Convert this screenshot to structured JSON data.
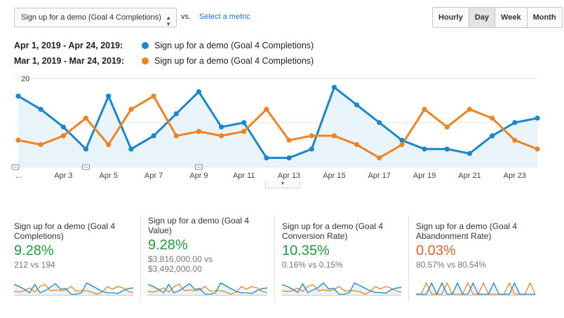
{
  "metric_selector": {
    "value": "Sign up for a demo (Goal 4 Completions)",
    "icon": "dropdown-arrow-icon"
  },
  "vs_label": "vs.",
  "select_metric_label": "Select a metric",
  "granularity": {
    "options": [
      "Hourly",
      "Day",
      "Week",
      "Month"
    ],
    "selected": "Day"
  },
  "legend": [
    {
      "range": "Apr 1, 2019 - Apr 24, 2019:",
      "label": "Sign up for a demo (Goal 4 Completions)",
      "color": "#1a87cc"
    },
    {
      "range": "Mar 1, 2019 - Mar 24, 2019:",
      "label": "Sign up for a demo (Goal 4 Completions)",
      "color": "#f08321"
    }
  ],
  "chart_data": {
    "type": "area",
    "ylim": [
      0,
      20
    ],
    "yticks": [
      "20",
      "10"
    ],
    "x_points": [
      "Apr 1",
      "Apr 2",
      "Apr 3",
      "Apr 4",
      "Apr 5",
      "Apr 6",
      "Apr 7",
      "Apr 8",
      "Apr 9",
      "Apr 10",
      "Apr 11",
      "Apr 12",
      "Apr 13",
      "Apr 14",
      "Apr 15",
      "Apr 16",
      "Apr 17",
      "Apr 18",
      "Apr 19",
      "Apr 20",
      "Apr 21",
      "Apr 22",
      "Apr 23",
      "Apr 24"
    ],
    "xtick_labels": [
      {
        "label": "...",
        "index": 0
      },
      {
        "label": "Apr 3",
        "index": 2
      },
      {
        "label": "Apr 5",
        "index": 4
      },
      {
        "label": "Apr 7",
        "index": 6
      },
      {
        "label": "Apr 9",
        "index": 8
      },
      {
        "label": "Apr 11",
        "index": 10
      },
      {
        "label": "Apr 13",
        "index": 12
      },
      {
        "label": "Apr 15",
        "index": 14
      },
      {
        "label": "Apr 17",
        "index": 16
      },
      {
        "label": "Apr 19",
        "index": 18
      },
      {
        "label": "Apr 21",
        "index": 20
      },
      {
        "label": "Apr 23",
        "index": 22
      }
    ],
    "annotation_indices": [
      0,
      3,
      8
    ],
    "grid": true,
    "series": [
      {
        "name": "Apr 1, 2019 - Apr 24, 2019",
        "color": "#1a87cc",
        "area": true,
        "values": [
          16,
          13,
          9,
          4,
          16,
          4,
          7,
          12,
          17,
          9,
          10,
          2,
          2,
          4,
          18,
          14,
          10,
          6,
          4,
          4,
          3,
          7,
          10,
          11
        ]
      },
      {
        "name": "Mar 1, 2019 - Mar 24, 2019",
        "color": "#f08321",
        "area": false,
        "values": [
          6,
          5,
          7,
          11,
          5,
          13,
          16,
          7,
          8,
          7,
          8,
          13,
          6,
          7,
          7,
          5,
          2,
          5,
          13,
          9,
          13,
          11,
          6,
          4
        ]
      }
    ]
  },
  "collapse_icon": "collapse-arrow-icon",
  "scorecards": [
    {
      "title": "Sign up for a demo (Goal 4 Completions)",
      "value": "9.28%",
      "value_color": "#1e9e3e",
      "compare": "212 vs 194",
      "spark_blue": [
        16,
        13,
        9,
        4,
        16,
        4,
        7,
        12,
        17,
        9,
        10,
        2,
        2,
        4,
        18,
        14,
        10,
        6,
        4,
        4,
        3,
        7,
        10,
        11
      ],
      "spark_orange": [
        6,
        5,
        7,
        11,
        5,
        13,
        16,
        7,
        8,
        7,
        8,
        13,
        6,
        7,
        7,
        5,
        2,
        5,
        13,
        9,
        13,
        11,
        6,
        4
      ]
    },
    {
      "title": "Sign up for a demo (Goal 4 Value)",
      "value": "9.28%",
      "value_color": "#1e9e3e",
      "compare": "$3,816,000.00 vs $3,492,000.00",
      "spark_blue": [
        16,
        13,
        9,
        4,
        16,
        4,
        7,
        12,
        17,
        9,
        10,
        2,
        2,
        4,
        18,
        14,
        10,
        6,
        4,
        4,
        3,
        7,
        10,
        11
      ],
      "spark_orange": [
        6,
        5,
        7,
        11,
        5,
        13,
        16,
        7,
        8,
        7,
        8,
        13,
        6,
        7,
        7,
        5,
        2,
        5,
        13,
        9,
        13,
        11,
        6,
        4
      ]
    },
    {
      "title": "Sign up for a demo (Goal 4 Conversion Rate)",
      "value": "10.35%",
      "value_color": "#1e9e3e",
      "compare": "0.16% vs 0.15%",
      "spark_blue": [
        14,
        12,
        9,
        5,
        15,
        5,
        8,
        11,
        16,
        9,
        10,
        3,
        3,
        5,
        16,
        13,
        10,
        7,
        5,
        5,
        4,
        8,
        10,
        11
      ],
      "spark_orange": [
        7,
        6,
        7,
        10,
        6,
        12,
        14,
        7,
        8,
        7,
        8,
        12,
        7,
        7,
        7,
        6,
        3,
        6,
        12,
        9,
        12,
        10,
        7,
        5
      ]
    },
    {
      "title": "Sign up for a demo (Goal 4 Abandonment Rate)",
      "value": "0.03%",
      "value_color": "#e0642c",
      "compare": "80.57% vs 80.54%",
      "spark_blue": [
        10,
        10,
        10,
        11,
        10,
        11,
        10,
        10,
        11,
        10,
        10,
        11,
        10,
        10,
        10,
        11,
        10,
        10,
        10,
        11,
        10,
        10,
        10,
        10
      ],
      "spark_orange": [
        10,
        10,
        11,
        10,
        10,
        10,
        11,
        10,
        10,
        10,
        11,
        10,
        10,
        11,
        10,
        10,
        10,
        10,
        11,
        10,
        10,
        10,
        11,
        10
      ]
    }
  ]
}
